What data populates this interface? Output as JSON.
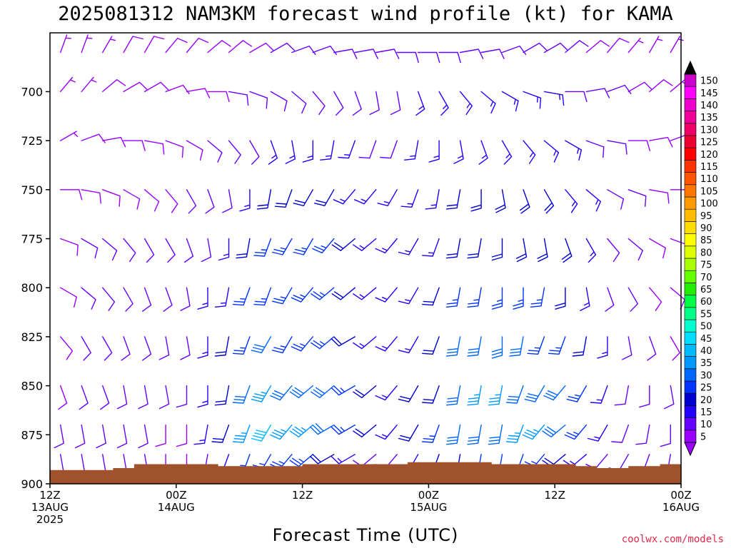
{
  "chart_data": {
    "type": "wind-barb-profile",
    "title": "2025081312 NAM3KM forecast wind profile (kt) for KAMA",
    "xlabel": "Forecast Time (UTC)",
    "credit": "coolwx.com/models",
    "ylim": [
      900,
      670
    ],
    "yticks": [
      700,
      725,
      750,
      775,
      800,
      825,
      850,
      875,
      900
    ],
    "xlim_hours": [
      0,
      60
    ],
    "xticks": [
      {
        "hour": 0,
        "lines": [
          "12Z",
          "13AUG",
          "2025"
        ]
      },
      {
        "hour": 12,
        "lines": [
          "00Z",
          "14AUG"
        ]
      },
      {
        "hour": 24,
        "lines": [
          "12Z"
        ]
      },
      {
        "hour": 36,
        "lines": [
          "00Z",
          "15AUG"
        ]
      },
      {
        "hour": 48,
        "lines": [
          "12Z"
        ]
      },
      {
        "hour": 60,
        "lines": [
          "00Z",
          "16AUG"
        ]
      }
    ],
    "colorbar": {
      "levels": [
        5,
        10,
        15,
        20,
        25,
        30,
        35,
        40,
        45,
        50,
        55,
        60,
        65,
        70,
        75,
        80,
        85,
        90,
        95,
        100,
        105,
        110,
        115,
        120,
        125,
        130,
        135,
        140,
        145,
        150
      ],
      "colors": [
        "#9900ff",
        "#6600ff",
        "#2200ff",
        "#0000d0",
        "#0033ff",
        "#0066ff",
        "#0099ff",
        "#00bbff",
        "#00ddff",
        "#00ffcc",
        "#00ff88",
        "#00ff44",
        "#22ee00",
        "#66ff00",
        "#aaff00",
        "#ddff00",
        "#ffff00",
        "#ffdd00",
        "#ffbb00",
        "#ff9900",
        "#ff7700",
        "#ff5500",
        "#ff3300",
        "#ff0000",
        "#ee0033",
        "#ee0066",
        "#ee0099",
        "#ee00cc",
        "#ff00ff",
        "#cc00cc"
      ],
      "arrow_top": "#000000",
      "arrow_bottom": "#9900ff"
    },
    "terrain": {
      "color": "#a0522d",
      "hours": [
        0,
        3,
        6,
        8,
        12,
        16,
        20,
        24,
        30,
        34,
        38,
        42,
        46,
        50,
        52,
        55,
        58,
        60
      ],
      "surface": [
        893,
        893,
        892,
        890,
        890,
        891,
        891,
        890,
        890,
        889,
        889,
        890,
        890,
        891,
        892,
        891,
        890,
        890
      ]
    },
    "profile": {
      "hours": [
        1,
        3,
        5,
        7,
        9,
        11,
        13,
        15,
        17,
        19,
        21,
        23,
        25,
        27,
        29,
        31,
        33,
        35,
        37,
        39,
        41,
        43,
        45,
        47,
        49,
        51,
        53,
        55,
        57,
        59
      ],
      "levels": [
        680,
        700,
        725,
        750,
        775,
        800,
        825,
        850,
        870,
        885
      ],
      "speed_kt": [
        [
          5,
          5,
          5,
          8,
          8,
          8,
          8,
          8,
          10,
          10
        ],
        [
          5,
          5,
          8,
          8,
          10,
          10,
          10,
          10,
          10,
          10
        ],
        [
          5,
          8,
          8,
          8,
          10,
          10,
          10,
          10,
          10,
          10
        ],
        [
          8,
          8,
          8,
          8,
          10,
          10,
          10,
          10,
          10,
          10
        ],
        [
          8,
          8,
          8,
          8,
          10,
          10,
          10,
          10,
          10,
          10
        ],
        [
          8,
          8,
          8,
          8,
          10,
          10,
          10,
          10,
          8,
          8
        ],
        [
          8,
          8,
          8,
          10,
          10,
          10,
          10,
          10,
          8,
          8
        ],
        [
          8,
          8,
          10,
          10,
          10,
          15,
          15,
          15,
          15,
          10
        ],
        [
          8,
          10,
          10,
          10,
          15,
          15,
          20,
          20,
          20,
          15
        ],
        [
          8,
          10,
          10,
          15,
          20,
          25,
          25,
          30,
          35,
          25
        ],
        [
          10,
          10,
          15,
          20,
          25,
          25,
          30,
          35,
          40,
          25
        ],
        [
          10,
          10,
          15,
          20,
          25,
          25,
          25,
          30,
          35,
          25
        ],
        [
          10,
          10,
          15,
          20,
          25,
          25,
          25,
          30,
          35,
          25
        ],
        [
          10,
          10,
          15,
          20,
          25,
          25,
          25,
          30,
          30,
          20
        ],
        [
          10,
          10,
          15,
          15,
          20,
          20,
          20,
          25,
          25,
          15
        ],
        [
          10,
          10,
          10,
          15,
          15,
          15,
          15,
          20,
          20,
          10
        ],
        [
          10,
          10,
          10,
          15,
          15,
          15,
          15,
          15,
          15,
          10
        ],
        [
          10,
          15,
          15,
          15,
          15,
          15,
          15,
          20,
          20,
          15
        ],
        [
          10,
          15,
          15,
          15,
          15,
          20,
          20,
          20,
          25,
          20
        ],
        [
          10,
          15,
          15,
          20,
          20,
          25,
          30,
          30,
          30,
          20
        ],
        [
          10,
          15,
          15,
          20,
          20,
          25,
          30,
          35,
          30,
          25
        ],
        [
          10,
          15,
          15,
          20,
          20,
          25,
          30,
          35,
          30,
          25
        ],
        [
          10,
          15,
          15,
          20,
          20,
          25,
          30,
          30,
          35,
          25
        ],
        [
          10,
          15,
          15,
          20,
          20,
          25,
          25,
          30,
          35,
          25
        ],
        [
          10,
          10,
          15,
          15,
          20,
          20,
          25,
          30,
          30,
          20
        ],
        [
          8,
          10,
          10,
          15,
          15,
          15,
          20,
          25,
          25,
          15
        ],
        [
          8,
          10,
          10,
          10,
          10,
          10,
          15,
          15,
          15,
          10
        ],
        [
          5,
          8,
          8,
          10,
          10,
          10,
          10,
          10,
          10,
          10
        ],
        [
          5,
          8,
          8,
          8,
          8,
          8,
          10,
          10,
          10,
          10
        ],
        [
          5,
          5,
          8,
          8,
          8,
          8,
          8,
          10,
          10,
          10
        ]
      ],
      "direction_deg": [
        [
          20,
          40,
          60,
          90,
          110,
          120,
          140,
          160,
          170,
          170
        ],
        [
          20,
          40,
          70,
          100,
          120,
          130,
          150,
          160,
          170,
          170
        ],
        [
          30,
          50,
          80,
          110,
          130,
          140,
          150,
          160,
          170,
          170
        ],
        [
          30,
          60,
          90,
          120,
          140,
          150,
          160,
          170,
          170,
          170
        ],
        [
          30,
          60,
          100,
          130,
          150,
          160,
          160,
          170,
          170,
          170
        ],
        [
          40,
          70,
          110,
          140,
          150,
          160,
          170,
          170,
          180,
          180
        ],
        [
          40,
          80,
          120,
          150,
          160,
          170,
          170,
          180,
          180,
          180
        ],
        [
          50,
          90,
          130,
          160,
          170,
          180,
          180,
          180,
          190,
          190
        ],
        [
          50,
          100,
          140,
          170,
          180,
          190,
          190,
          190,
          200,
          200
        ],
        [
          60,
          110,
          150,
          180,
          190,
          200,
          200,
          200,
          200,
          200
        ],
        [
          60,
          120,
          160,
          190,
          200,
          200,
          210,
          210,
          210,
          210
        ],
        [
          70,
          130,
          170,
          200,
          210,
          210,
          210,
          220,
          220,
          220
        ],
        [
          70,
          140,
          180,
          210,
          210,
          220,
          220,
          230,
          230,
          230
        ],
        [
          80,
          150,
          190,
          210,
          220,
          230,
          230,
          230,
          240,
          240
        ],
        [
          80,
          160,
          200,
          220,
          230,
          230,
          240,
          240,
          240,
          240
        ],
        [
          80,
          170,
          200,
          220,
          230,
          230,
          230,
          230,
          230,
          230
        ],
        [
          90,
          170,
          200,
          210,
          220,
          220,
          220,
          220,
          220,
          220
        ],
        [
          90,
          160,
          190,
          200,
          210,
          210,
          210,
          210,
          210,
          210
        ],
        [
          90,
          150,
          180,
          190,
          200,
          200,
          200,
          200,
          200,
          200
        ],
        [
          80,
          140,
          170,
          190,
          190,
          190,
          190,
          190,
          190,
          190
        ],
        [
          80,
          130,
          160,
          180,
          190,
          190,
          190,
          190,
          190,
          190
        ],
        [
          70,
          120,
          150,
          170,
          180,
          180,
          180,
          190,
          190,
          190
        ],
        [
          60,
          110,
          140,
          160,
          170,
          180,
          190,
          200,
          200,
          200
        ],
        [
          60,
          100,
          130,
          150,
          170,
          190,
          200,
          210,
          220,
          220
        ],
        [
          50,
          90,
          120,
          140,
          160,
          180,
          200,
          220,
          230,
          230
        ],
        [
          50,
          80,
          110,
          130,
          150,
          170,
          190,
          210,
          220,
          230
        ],
        [
          40,
          70,
          100,
          120,
          140,
          160,
          180,
          200,
          210,
          220
        ],
        [
          40,
          60,
          90,
          110,
          130,
          150,
          170,
          190,
          200,
          210
        ],
        [
          30,
          50,
          80,
          100,
          120,
          140,
          160,
          180,
          190,
          200
        ],
        [
          30,
          50,
          70,
          90,
          110,
          130,
          150,
          170,
          180,
          190
        ]
      ]
    }
  }
}
